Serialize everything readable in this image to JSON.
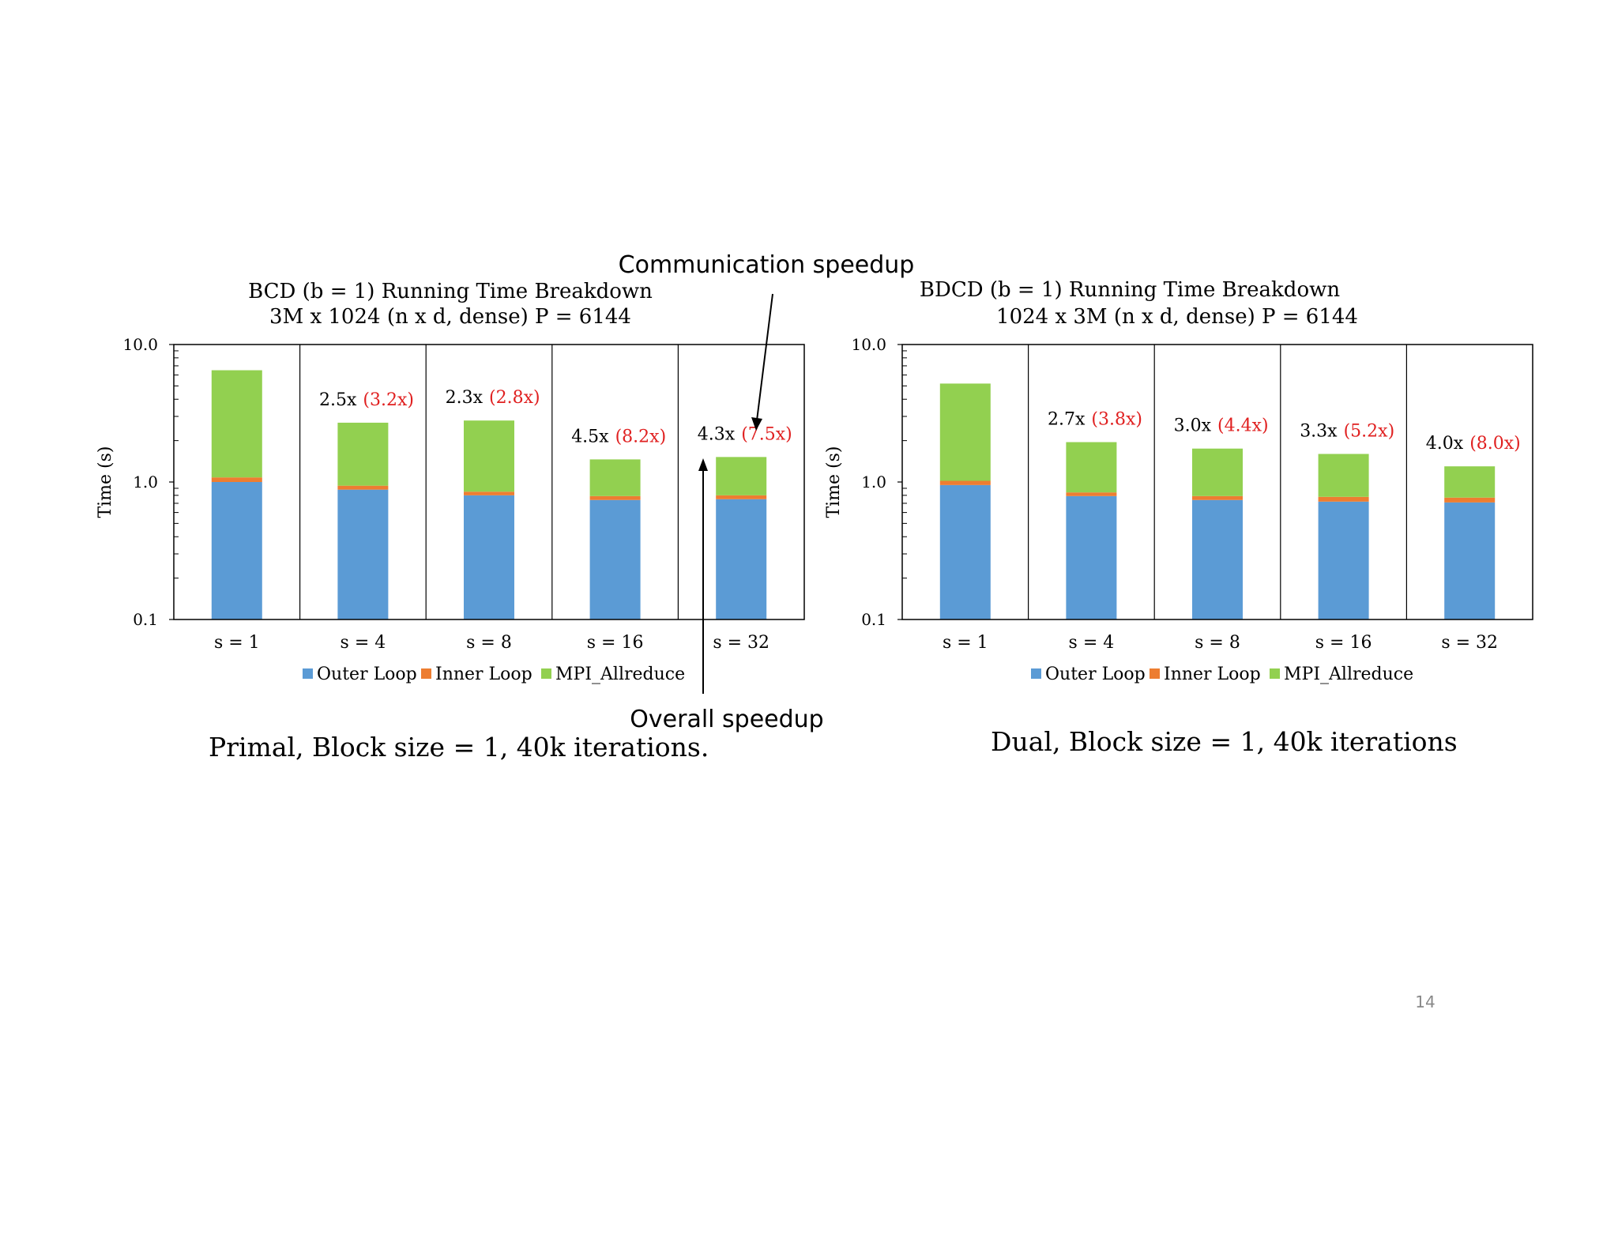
{
  "slide": {
    "page_number": "14",
    "annotation_comm": "Communication speedup",
    "annotation_overall": "Overall speedup",
    "colors": {
      "outer": "#5B9BD5",
      "inner": "#ED7D31",
      "mpi": "#92D050",
      "speedup_overall": "#000000",
      "speedup_comm": "#E02020",
      "page_number": "#888888"
    }
  },
  "chart_data": [
    {
      "type": "bar",
      "stacked": true,
      "yscale": "log",
      "title": "BCD (b = 1) Running Time Breakdown",
      "subtitle": "3M x 1024 (n x d, dense) P = 6144",
      "caption": "Primal, Block size = 1, 40k iterations.",
      "xlabel": "",
      "ylabel": "Time (s)",
      "ylim": [
        0.1,
        10.0
      ],
      "yticks": [
        "0.1",
        "1.0",
        "10.0"
      ],
      "categories": [
        "s = 1",
        "s = 4",
        "s = 8",
        "s = 16",
        "s = 32"
      ],
      "series": [
        {
          "name": "Outer Loop",
          "values": [
            1.0,
            0.88,
            0.8,
            0.74,
            0.75
          ]
        },
        {
          "name": "Inner Loop",
          "values": [
            0.08,
            0.06,
            0.05,
            0.05,
            0.05
          ]
        },
        {
          "name": "MPI_Allreduce",
          "values": [
            5.42,
            1.76,
            1.95,
            0.67,
            0.72
          ]
        }
      ],
      "speedup_overall": [
        "",
        "2.5x",
        "2.3x",
        "4.5x",
        "4.3x"
      ],
      "speedup_comm": [
        "",
        "(3.2x)",
        "(2.8x)",
        "(8.2x)",
        "(7.5x)"
      ],
      "legend": [
        "Outer Loop",
        "Inner Loop",
        "MPI_Allreduce"
      ],
      "legend_position": "bottom",
      "grid": false
    },
    {
      "type": "bar",
      "stacked": true,
      "yscale": "log",
      "title": "BDCD (b = 1)  Running Time Breakdown",
      "subtitle": "1024 x 3M (n x d, dense) P = 6144",
      "caption": "Dual, Block size = 1, 40k iterations",
      "xlabel": "",
      "ylabel": "Time (s)",
      "ylim": [
        0.1,
        10.0
      ],
      "yticks": [
        "0.1",
        "1.0",
        "10.0"
      ],
      "categories": [
        "s = 1",
        "s = 4",
        "s = 8",
        "s = 16",
        "s = 32"
      ],
      "series": [
        {
          "name": "Outer Loop",
          "values": [
            0.95,
            0.79,
            0.74,
            0.72,
            0.71
          ]
        },
        {
          "name": "Inner Loop",
          "values": [
            0.07,
            0.05,
            0.05,
            0.06,
            0.06
          ]
        },
        {
          "name": "MPI_Allreduce",
          "values": [
            4.18,
            1.11,
            0.96,
            0.82,
            0.53
          ]
        }
      ],
      "speedup_overall": [
        "",
        "2.7x",
        "3.0x",
        "3.3x",
        "4.0x"
      ],
      "speedup_comm": [
        "",
        "(3.8x)",
        "(4.4x)",
        "(5.2x)",
        "(8.0x)"
      ],
      "legend": [
        "Outer Loop",
        "Inner Loop",
        "MPI_Allreduce"
      ],
      "legend_position": "bottom",
      "grid": false
    }
  ]
}
